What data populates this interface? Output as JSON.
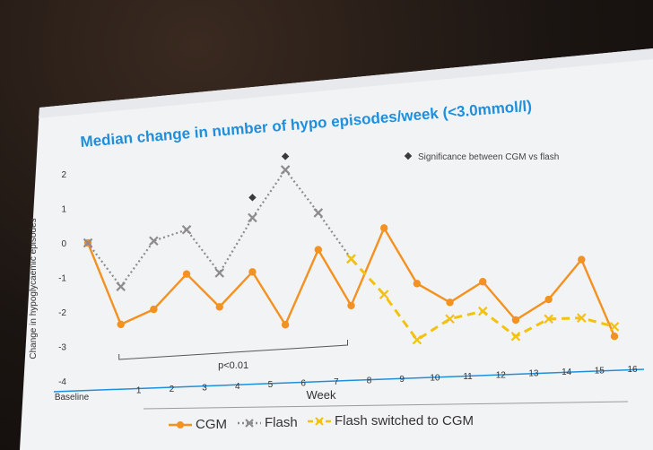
{
  "chart_data": {
    "type": "line",
    "title": "Median change in number of hypo episodes/week (<3.0mmol/l)",
    "xlabel": "Week",
    "ylabel": "Change in hypoglycaemic episodes",
    "categories": [
      "Baseline",
      "1",
      "2",
      "3",
      "4",
      "5",
      "6",
      "7",
      "8",
      "9",
      "10",
      "11",
      "12",
      "13",
      "14",
      "15",
      "16"
    ],
    "ylim": [
      -4,
      3
    ],
    "yticks": [
      -4,
      -3,
      -2,
      -1,
      0,
      1,
      2
    ],
    "series": [
      {
        "name": "CGM",
        "color": "#f39121",
        "dash": "solid",
        "marker": "circle",
        "values": [
          0,
          -2.3,
          -1.8,
          -0.7,
          -1.6,
          -0.5,
          -2.0,
          0.3,
          -1.3,
          1.1,
          -0.5,
          -1.0,
          -0.3,
          -1.4,
          -0.7,
          0.6,
          -1.7
        ]
      },
      {
        "name": "Flash",
        "color": "#8c8c8c",
        "dash": "dotted",
        "marker": "x",
        "values": [
          0,
          -1.2,
          0.2,
          0.6,
          -0.6,
          1.1,
          2.6,
          1.4,
          0.1,
          null,
          null,
          null,
          null,
          null,
          null,
          null,
          null
        ]
      },
      {
        "name": "Flash switched to CGM",
        "color": "#f3c20e",
        "dash": "dashed",
        "marker": "x",
        "values": [
          null,
          null,
          null,
          null,
          null,
          null,
          null,
          null,
          0.1,
          -0.9,
          -2.2,
          -1.5,
          -1.2,
          -1.9,
          -1.3,
          -1.2,
          -1.4
        ]
      }
    ],
    "significance": {
      "label": "Significance between CGM vs flash",
      "marker_color": "#3a3a3a",
      "points": [
        {
          "x": "5",
          "y": 1.7
        },
        {
          "x": "6",
          "y": 3.0
        }
      ]
    },
    "annotation": {
      "label": "p<0.01",
      "from": "1",
      "to": "8"
    },
    "legend": {
      "placement": "bottom"
    }
  }
}
